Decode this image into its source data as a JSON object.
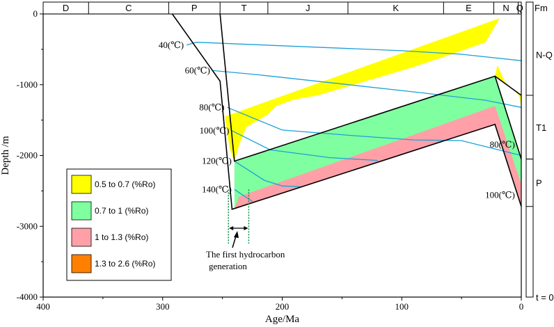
{
  "chart_data": {
    "type": "area",
    "title": "",
    "xlabel": "Age/Ma",
    "ylabel": "Depth /m",
    "xlim": [
      400,
      0
    ],
    "ylim": [
      0,
      -4000
    ],
    "x_ticks": [
      "400",
      "300",
      "200",
      "100",
      "0"
    ],
    "y_ticks": [
      "0",
      "-1000",
      "-2000",
      "-3000",
      "-4000"
    ],
    "periods": [
      {
        "label": "D",
        "start": 400,
        "end": 362
      },
      {
        "label": "C",
        "start": 362,
        "end": 295
      },
      {
        "label": "P",
        "start": 295,
        "end": 252
      },
      {
        "label": "T",
        "start": 252,
        "end": 212
      },
      {
        "label": "J",
        "start": 212,
        "end": 145
      },
      {
        "label": "K",
        "start": 145,
        "end": 65
      },
      {
        "label": "E",
        "start": 65,
        "end": 23
      },
      {
        "label": "N",
        "start": 23,
        "end": 2.6
      },
      {
        "label": "Q",
        "start": 2.6,
        "end": 0
      }
    ],
    "formation_header": "Fm",
    "formations": [
      {
        "label": "N-Q",
        "top": 0,
        "bottom": -1150
      },
      {
        "label": "T1",
        "top": -1150,
        "bottom": -2050
      },
      {
        "label": "P",
        "top": -2050,
        "bottom": -2720
      }
    ],
    "formation_footer": "t = 0",
    "burial_lines": [
      {
        "x": [
          292,
          252,
          242,
          22,
          0
        ],
        "y": [
          0,
          -950,
          -2760,
          -1560,
          -2720
        ]
      },
      {
        "x": [
          252,
          240,
          22,
          0
        ],
        "y": [
          0,
          -2080,
          -880,
          -2050
        ]
      },
      {
        "x": [
          22,
          0
        ],
        "y": [
          -880,
          -1150
        ]
      }
    ],
    "maturity_zones": [
      {
        "name": "0.5 to 0.7 (%Ro)",
        "color": "#ffff00",
        "x": [
          248,
          244,
          240,
          22,
          20,
          14,
          2,
          0,
          0,
          22,
          240,
          236,
          230,
          212,
          205,
          190,
          170,
          150,
          120,
          90,
          60,
          30,
          18
        ],
        "y": [
          -1450,
          -1900,
          -2080,
          -880,
          -720,
          -950,
          -1150,
          -1300,
          -1150,
          -880,
          -2080,
          -1850,
          -1600,
          -1420,
          -1300,
          -1210,
          -1150,
          -1050,
          -900,
          -750,
          -580,
          -400,
          -60
        ]
      },
      {
        "name": "0.7 to 1 (%Ro)",
        "color": "#80ffa0",
        "x": [
          240,
          22,
          0,
          0,
          22,
          240
        ],
        "y": [
          -2080,
          -880,
          -2050,
          -2720,
          -1560,
          -2760
        ]
      },
      {
        "name": "1 to 1.3 (%Ro)",
        "color": "#ffa0a8",
        "x": [
          236,
          22,
          0,
          0,
          22,
          240
        ],
        "y": [
          -2580,
          -1300,
          -2400,
          -2720,
          -1560,
          -2760
        ]
      },
      {
        "name": "1.3 to 2.6 (%Ro)",
        "color": "#ff8000",
        "x": [],
        "y": []
      }
    ],
    "isotherms": [
      {
        "name": "40(℃)",
        "x": [
          280,
          272,
          200,
          100,
          50,
          0
        ],
        "y": [
          -440,
          -400,
          -450,
          -520,
          -570,
          -660
        ]
      },
      {
        "name": "60(℃)",
        "x": [
          258,
          220,
          150,
          80,
          30,
          0
        ],
        "y": [
          -800,
          -860,
          -990,
          -1120,
          -1220,
          -1320
        ]
      },
      {
        "name": "80(℃)",
        "x": [
          246,
          200,
          140,
          90,
          50,
          0
        ],
        "y": [
          -1320,
          -1640,
          -1720,
          -1780,
          -1790,
          -2000
        ]
      },
      {
        "name": "100(℃)",
        "x": [
          242,
          210,
          160,
          120
        ],
        "y": [
          -1650,
          -1920,
          -2030,
          -2070
        ]
      },
      {
        "name": "120(℃)",
        "x": [
          240,
          215,
          200,
          185
        ],
        "y": [
          -2080,
          -2350,
          -2430,
          -2440
        ]
      },
      {
        "name": "140(℃)",
        "x": [
          240,
          225
        ],
        "y": [
          -2480,
          -2650
        ]
      }
    ],
    "right_isotherm_labels": [
      {
        "name": "80(℃)",
        "anchor_x": 3,
        "anchor_y": -1850
      },
      {
        "name": "100(℃)",
        "anchor_x": 3,
        "anchor_y": -2560
      }
    ],
    "annotation": {
      "text": [
        "The first hydrocarbon",
        "generation"
      ],
      "x_range": [
        245,
        228
      ]
    },
    "legend_position": "bottom-left"
  },
  "colors": {
    "axis": "#000000",
    "isotherm": "#1ba0d8",
    "annotation_line": "#008a3c",
    "burial": "#000000"
  }
}
